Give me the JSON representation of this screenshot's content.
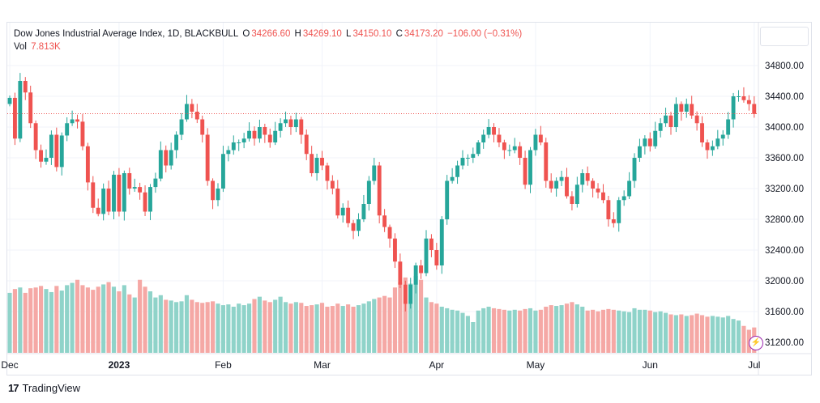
{
  "legend": {
    "title": "Dow Jones Industrial Average Index, 1D, BLACKBULL",
    "open_label": "O",
    "open": "34266.60",
    "high_label": "H",
    "high": "34269.10",
    "low_label": "L",
    "low": "34150.10",
    "close_label": "C",
    "close": "34173.20",
    "change": "−106.00 (−0.31%)",
    "vol_label": "Vol",
    "vol": "7.813K"
  },
  "brand": {
    "logo": "17",
    "name": "TradingView"
  },
  "colors": {
    "up": "#26a69a",
    "down": "#ef5350",
    "up_vol": "#8fd3c9",
    "down_vol": "#f5a8a5",
    "grid": "#f0f3fa"
  },
  "chart_data": {
    "type": "candlestick",
    "y_ticks": [
      "34800.00",
      "34400.00",
      "34000.00",
      "33600.00",
      "33200.00",
      "32800.00",
      "32400.00",
      "32000.00",
      "31600.00",
      "31200.00"
    ],
    "ylim": [
      31050,
      35050
    ],
    "x_ticks": [
      {
        "label": "Dec",
        "index": 0
      },
      {
        "label": "2023",
        "index": 21
      },
      {
        "label": "Feb",
        "index": 41
      },
      {
        "label": "Mar",
        "index": 60
      },
      {
        "label": "Apr",
        "index": 82
      },
      {
        "label": "May",
        "index": 101
      },
      {
        "label": "Jun",
        "index": 123
      },
      {
        "label": "Jul",
        "index": 143
      }
    ],
    "last_close": 34173.2,
    "closes": [
      34380,
      33850,
      34600,
      34450,
      34050,
      33700,
      33550,
      33600,
      33900,
      33480,
      33890,
      34050,
      34100,
      34070,
      33750,
      33280,
      32950,
      32870,
      33200,
      32900,
      33380,
      32900,
      33400,
      33200,
      33220,
      33150,
      32900,
      33220,
      33330,
      33700,
      33500,
      33700,
      33900,
      34100,
      34300,
      34200,
      34100,
      33900,
      33300,
      33050,
      33200,
      33650,
      33700,
      33800,
      33800,
      33850,
      33950,
      33850,
      34000,
      33900,
      33800,
      33950,
      34050,
      34100,
      34000,
      34100,
      33900,
      33650,
      33400,
      33600,
      33500,
      33300,
      33200,
      32850,
      32950,
      32750,
      32650,
      32800,
      33000,
      33300,
      33500,
      32850,
      32700,
      32550,
      32250,
      31950,
      31700,
      31950,
      32200,
      32100,
      32550,
      32400,
      32200,
      32800,
      33300,
      33350,
      33500,
      33600,
      33600,
      33650,
      33800,
      33900,
      34000,
      33900,
      33800,
      33700,
      33700,
      33750,
      33600,
      33250,
      33700,
      33900,
      33800,
      33300,
      33200,
      33300,
      33350,
      33100,
      33000,
      33250,
      33400,
      33300,
      33200,
      33150,
      33050,
      32800,
      32750,
      33050,
      33100,
      33300,
      33600,
      33750,
      33850,
      33750,
      33950,
      34050,
      34150,
      34000,
      34300,
      34200,
      34300,
      34150,
      34050,
      33800,
      33700,
      33750,
      33850,
      33900,
      34100,
      34400,
      34400,
      34350,
      34300,
      34170
    ],
    "volume_rel": [
      0.78,
      0.83,
      0.85,
      0.78,
      0.84,
      0.85,
      0.87,
      0.83,
      0.79,
      0.87,
      0.81,
      0.88,
      0.91,
      0.95,
      0.88,
      0.85,
      0.82,
      0.86,
      0.89,
      0.92,
      0.86,
      0.8,
      0.88,
      0.76,
      0.72,
      0.95,
      0.86,
      0.8,
      0.72,
      0.75,
      0.69,
      0.68,
      0.66,
      0.67,
      0.75,
      0.69,
      0.66,
      0.65,
      0.66,
      0.67,
      0.64,
      0.62,
      0.63,
      0.6,
      0.64,
      0.62,
      0.64,
      0.7,
      0.73,
      0.68,
      0.66,
      0.69,
      0.73,
      0.66,
      0.64,
      0.66,
      0.65,
      0.61,
      0.62,
      0.63,
      0.65,
      0.6,
      0.61,
      0.64,
      0.61,
      0.63,
      0.6,
      0.62,
      0.64,
      0.67,
      0.7,
      0.72,
      0.74,
      0.72,
      0.85,
      0.92,
      0.98,
      0.9,
      1.0,
      0.95,
      0.72,
      0.66,
      0.64,
      0.6,
      0.58,
      0.56,
      0.55,
      0.52,
      0.48,
      0.4,
      0.55,
      0.58,
      0.6,
      0.58,
      0.57,
      0.56,
      0.55,
      0.56,
      0.55,
      0.57,
      0.58,
      0.55,
      0.56,
      0.6,
      0.62,
      0.61,
      0.62,
      0.64,
      0.66,
      0.63,
      0.6,
      0.55,
      0.56,
      0.54,
      0.56,
      0.57,
      0.56,
      0.55,
      0.54,
      0.53,
      0.58,
      0.56,
      0.56,
      0.55,
      0.53,
      0.54,
      0.52,
      0.5,
      0.49,
      0.5,
      0.48,
      0.49,
      0.51,
      0.49,
      0.47,
      0.48,
      0.47,
      0.46,
      0.48,
      0.44,
      0.42,
      0.35,
      0.3,
      0.33
    ]
  }
}
